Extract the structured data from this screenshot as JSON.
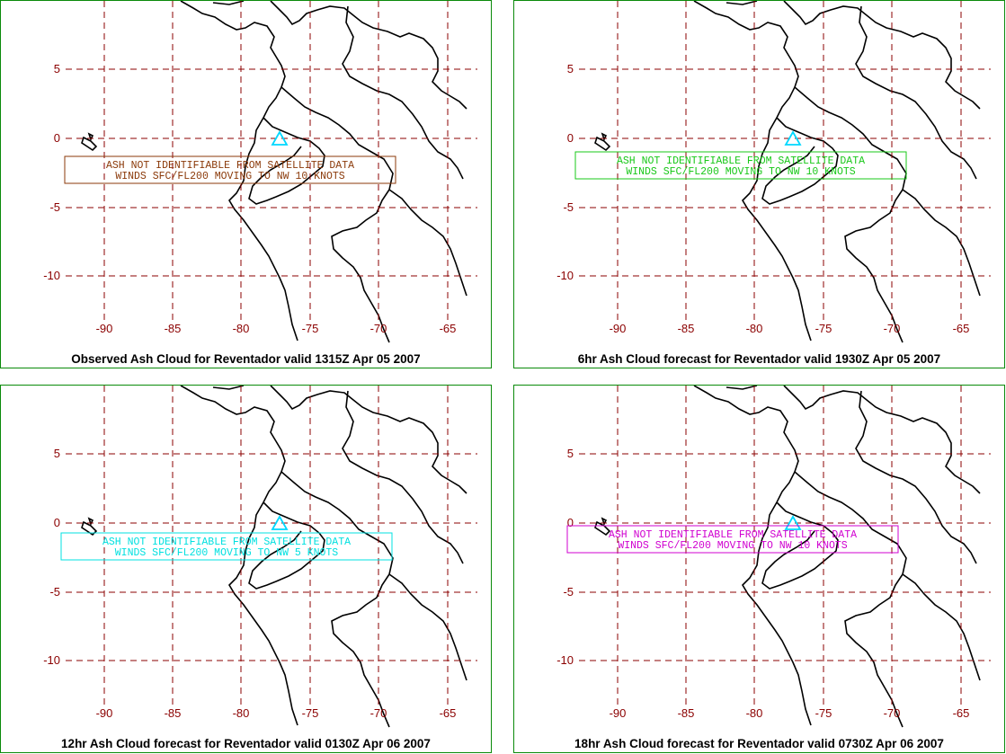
{
  "map_common": {
    "lat_labels": [
      "5",
      "0",
      "-5",
      "-10"
    ],
    "lon_labels": [
      "-90",
      "-85",
      "-80",
      "-75",
      "-70",
      "-65"
    ],
    "colors": {
      "grid": "#8b0000",
      "border": "#0a8a0a",
      "coast": "#000000",
      "volcano": "#00d8ff"
    },
    "volcano_icon": "triangle-icon"
  },
  "panels": [
    {
      "title": "Observed Ash Cloud for Reventador valid 1315Z Apr 05 2007",
      "advisory_line1": "ASH NOT IDENTIFIABLE FROM SATELLITE DATA",
      "advisory_line2": "WINDS SFC/FL200 MOVING TO NW 10 KNOTS",
      "color": "#8b3a0a"
    },
    {
      "title": "6hr Ash Cloud forecast for Reventador valid 1930Z Apr 05 2007",
      "advisory_line1": "ASH NOT IDENTIFIABLE FROM SATELLITE DATA",
      "advisory_line2": "WINDS SFC/FL200 MOVING TO NW 10 KNOTS",
      "color": "#19c819"
    },
    {
      "title": "12hr Ash Cloud forecast for Reventador valid 0130Z Apr 06 2007",
      "advisory_line1": "ASH NOT IDENTIFIABLE FROM SATELLITE DATA",
      "advisory_line2": "WINDS SFC/FL200 MOVING TO NW 5 KNOTS",
      "color": "#00e0e0"
    },
    {
      "title": "18hr Ash Cloud forecast for Reventador valid 0730Z Apr 06 2007",
      "advisory_line1": "ASH NOT IDENTIFIABLE FROM SATELLITE DATA",
      "advisory_line2": "WINDS SFC/FL200 MOVING TO NW 10 KNOTS",
      "color": "#d000d0"
    }
  ]
}
